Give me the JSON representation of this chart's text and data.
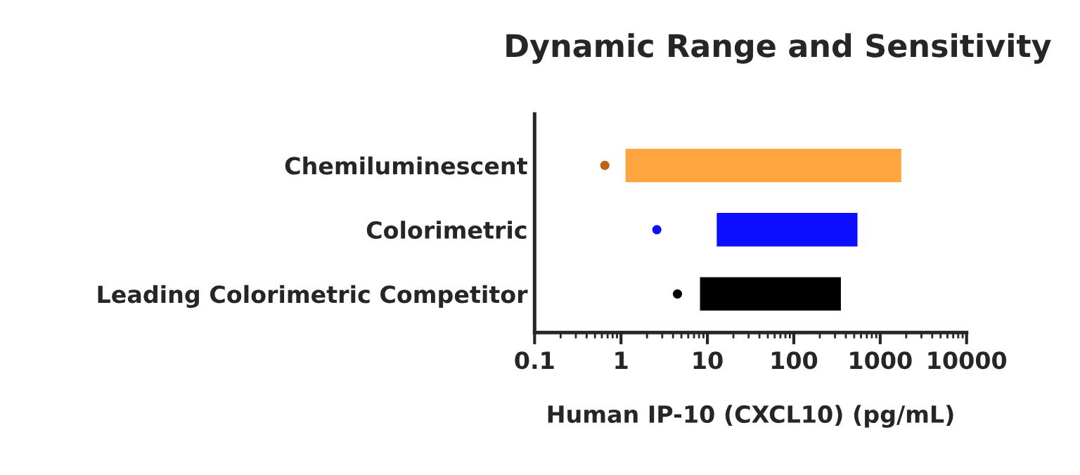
{
  "chart_data": {
    "type": "bar",
    "orientation": "horizontal",
    "title": "Dynamic Range and Sensitivity",
    "xlabel": "Human IP-10 (CXCL10) (pg/mL)",
    "categories": [
      "Chemiluminescent",
      "Colorimetric",
      "Leading Colorimetric Competitor"
    ],
    "series": [
      {
        "colors": [
          "#ffa540",
          "#0d0dff",
          "#000000"
        ],
        "base": [
          1.1,
          12.5,
          8
        ],
        "values": [
          1798.9,
          547.5,
          352
        ]
      },
      {
        "type": "scatter",
        "colors": [
          "#c0631a",
          "#0d0dff",
          "#000000"
        ],
        "values": [
          0.65,
          2.6,
          4.5
        ]
      }
    ],
    "log": "x",
    "xlim": [
      0.1,
      10000
    ],
    "xticks": [
      0.1,
      1,
      10,
      100,
      1000,
      10000
    ],
    "grid": false,
    "legend": false
  }
}
